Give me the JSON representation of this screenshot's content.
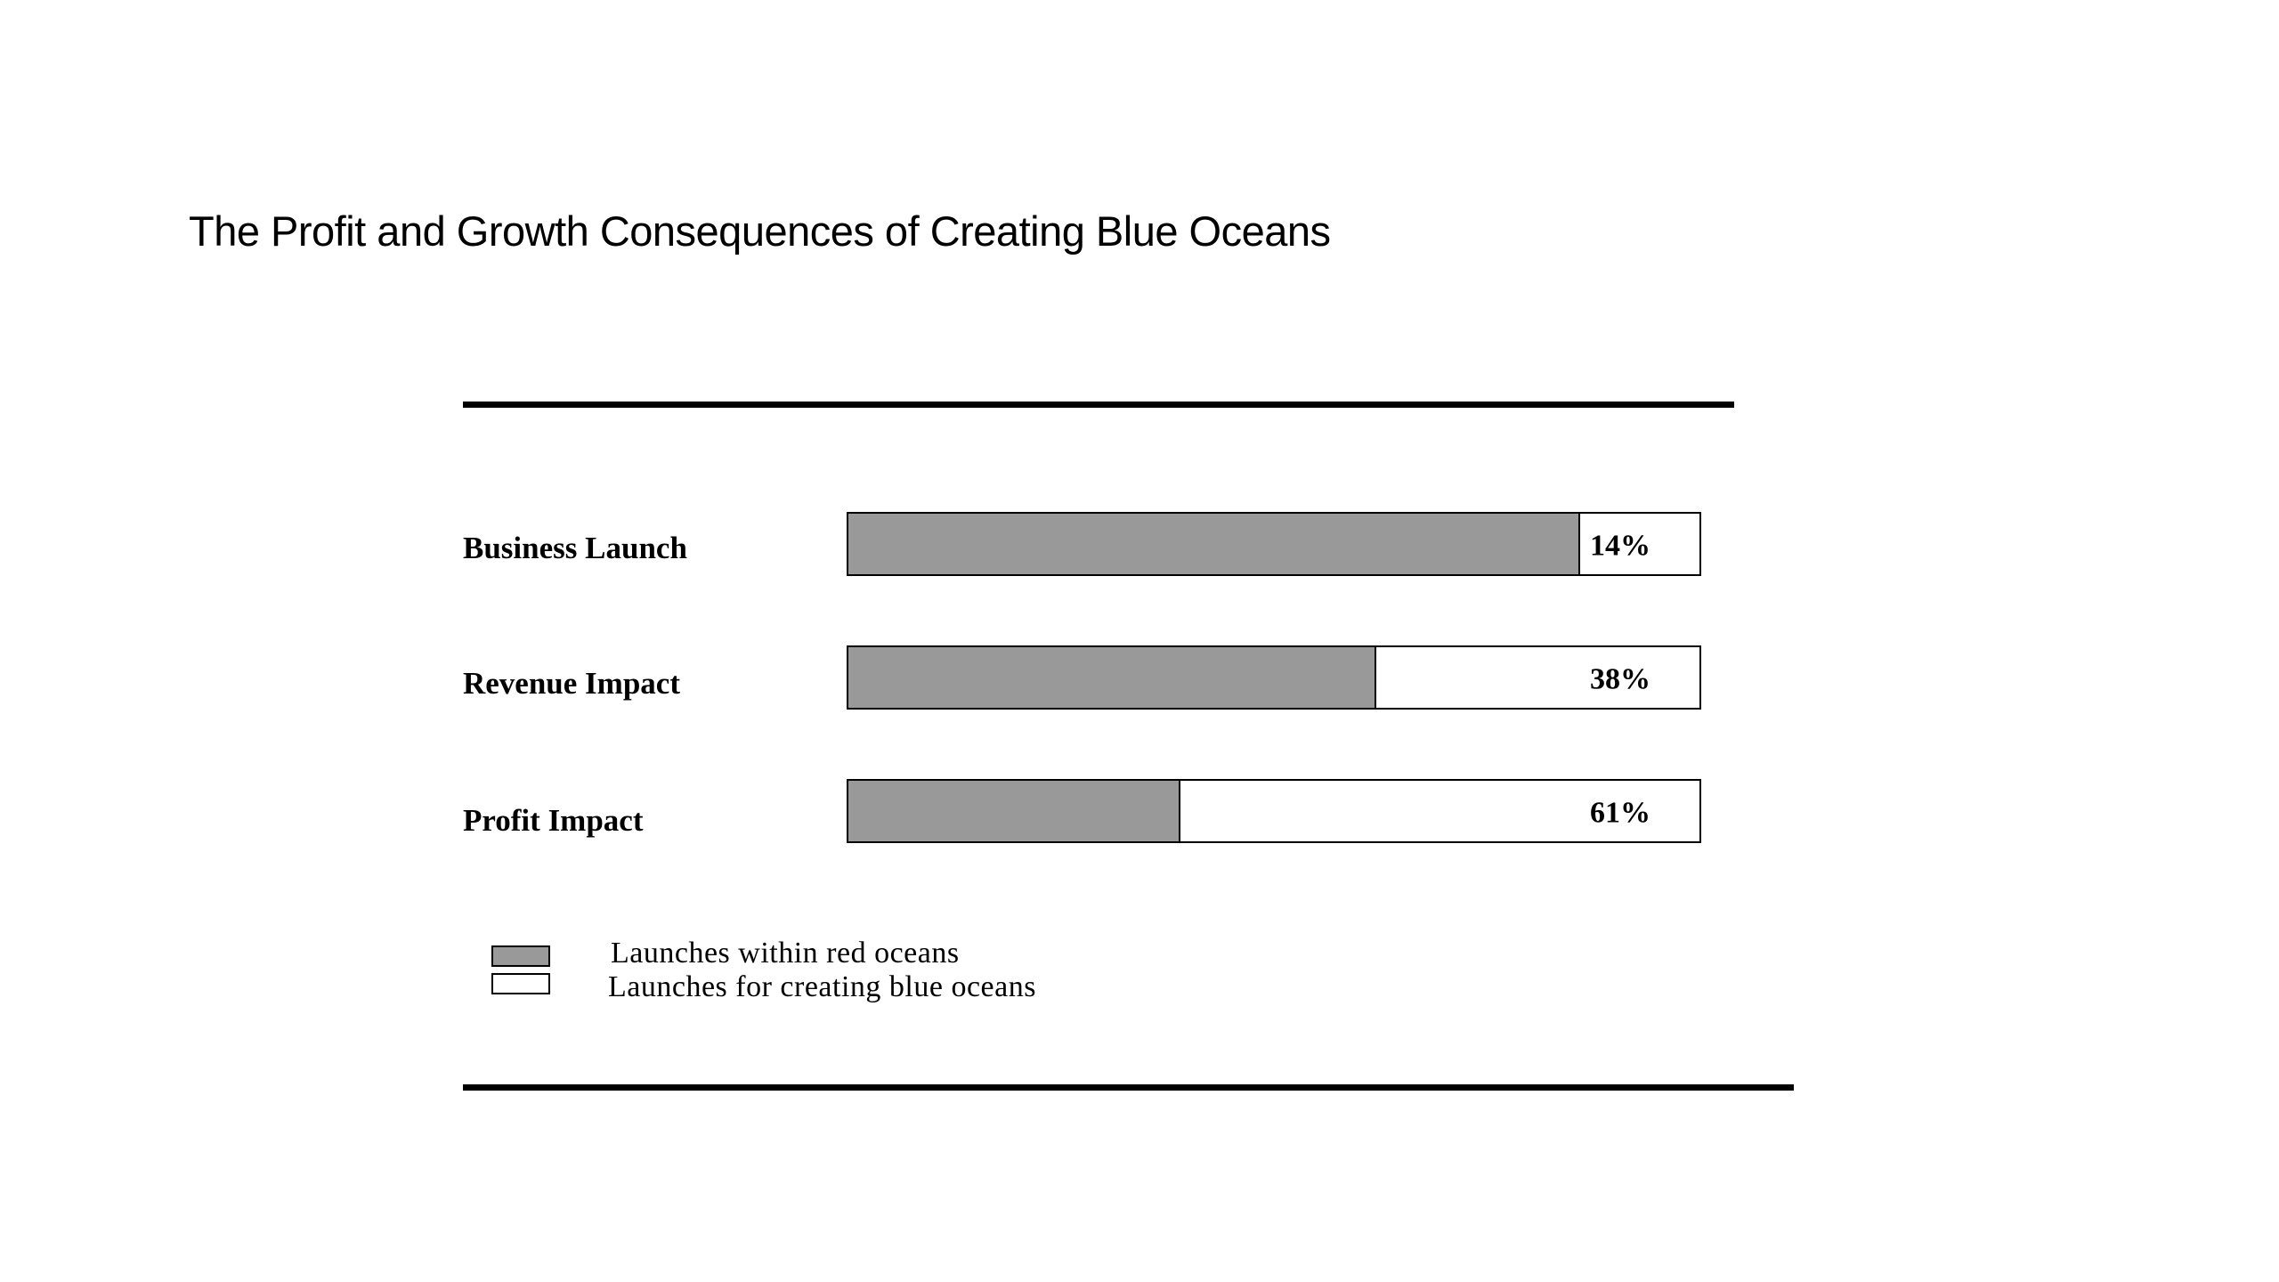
{
  "slide": {
    "title": "The Profit and Growth Consequences of Creating Blue Oceans"
  },
  "chart_data": {
    "type": "bar",
    "orientation": "horizontal",
    "stacked": true,
    "percent_stacked": true,
    "categories": [
      "Business Launch",
      "Revenue Impact",
      "Profit Impact"
    ],
    "series": [
      {
        "name": "Launches within red oceans",
        "values": [
          86,
          62,
          39
        ],
        "color": "#999999"
      },
      {
        "name": "Launches for creating blue oceans",
        "values": [
          14,
          38,
          61
        ],
        "color": "#ffffff"
      }
    ],
    "data_labels": [
      "14%",
      "38%",
      "61%"
    ],
    "xlim": [
      0,
      100
    ],
    "grid": false,
    "legend_position": "bottom-left"
  }
}
